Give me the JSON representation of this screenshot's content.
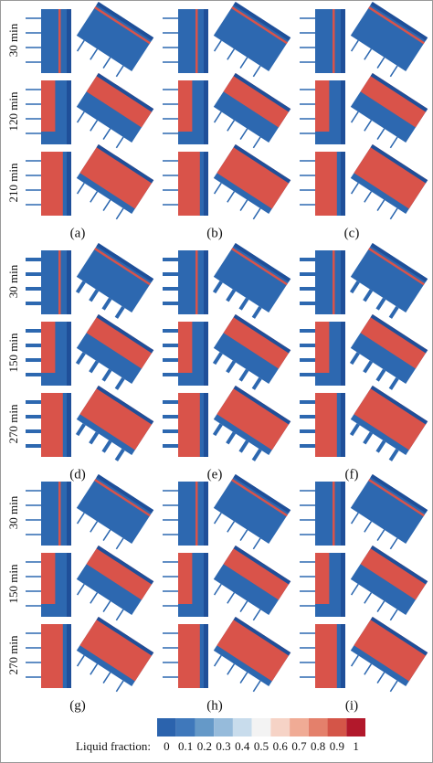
{
  "groups": [
    {
      "time_labels": [
        "30 min",
        "120 min",
        "210 min"
      ],
      "panel_labels": [
        "(a)",
        "(b)",
        "(c)"
      ]
    },
    {
      "time_labels": [
        "30 min",
        "150 min",
        "270 min"
      ],
      "panel_labels": [
        "(d)",
        "(e)",
        "(f)"
      ]
    },
    {
      "time_labels": [
        "30 min",
        "150 min",
        "270 min"
      ],
      "panel_labels": [
        "(g)",
        "(h)",
        "(i)"
      ]
    }
  ],
  "colorbar": {
    "label": "Liquid fraction:",
    "ticks": [
      0,
      0.1,
      0.2,
      0.3,
      0.4,
      0.5,
      0.6,
      0.7,
      0.8,
      0.9,
      1
    ]
  }
}
